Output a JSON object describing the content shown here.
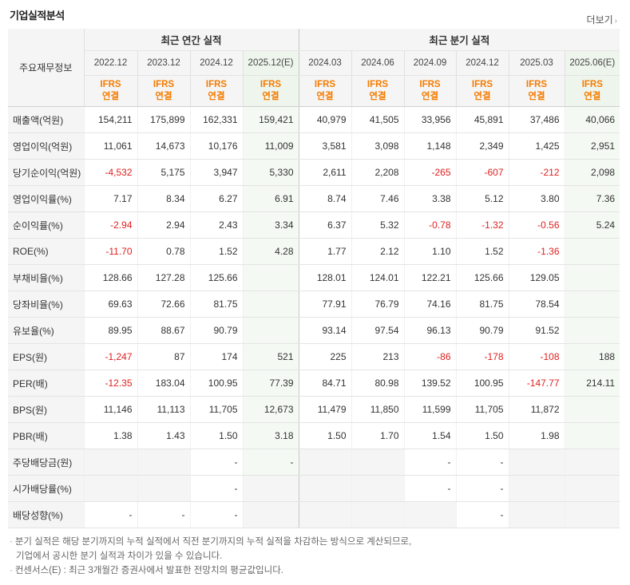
{
  "title": "기업실적분석",
  "more_label": "더보기",
  "more_arrow": "›",
  "header": {
    "label": "주요재무정보",
    "annual_group": "최근 연간 실적",
    "quarter_group": "최근 분기 실적",
    "periods": [
      "2022.12",
      "2023.12",
      "2024.12",
      "2025.12(E)",
      "2024.03",
      "2024.06",
      "2024.09",
      "2024.12",
      "2025.03",
      "2025.06(E)"
    ],
    "ifrs": [
      "IFRS",
      "IFRS",
      "IFRS",
      "IFRS",
      "IFRS",
      "IFRS",
      "IFRS",
      "IFRS",
      "IFRS",
      "IFRS"
    ],
    "consol": [
      "연결",
      "연결",
      "연결",
      "연결",
      "연결",
      "연결",
      "연결",
      "연결",
      "연결",
      "연결"
    ]
  },
  "rows": [
    {
      "label": "매출액(억원)",
      "values": [
        "154,211",
        "175,899",
        "162,331",
        "159,421",
        "40,979",
        "41,505",
        "33,956",
        "45,891",
        "37,486",
        "40,066"
      ]
    },
    {
      "label": "영업이익(억원)",
      "values": [
        "11,061",
        "14,673",
        "10,176",
        "11,009",
        "3,581",
        "3,098",
        "1,148",
        "2,349",
        "1,425",
        "2,951"
      ]
    },
    {
      "label": "당기순이익(억원)",
      "values": [
        "-4,532",
        "5,175",
        "3,947",
        "5,330",
        "2,611",
        "2,208",
        "-265",
        "-607",
        "-212",
        "2,098"
      ]
    },
    {
      "label": "영업이익률(%)",
      "values": [
        "7.17",
        "8.34",
        "6.27",
        "6.91",
        "8.74",
        "7.46",
        "3.38",
        "5.12",
        "3.80",
        "7.36"
      ]
    },
    {
      "label": "순이익률(%)",
      "values": [
        "-2.94",
        "2.94",
        "2.43",
        "3.34",
        "6.37",
        "5.32",
        "-0.78",
        "-1.32",
        "-0.56",
        "5.24"
      ]
    },
    {
      "label": "ROE(%)",
      "values": [
        "-11.70",
        "0.78",
        "1.52",
        "4.28",
        "1.77",
        "2.12",
        "1.10",
        "1.52",
        "-1.36",
        ""
      ]
    },
    {
      "label": "부채비율(%)",
      "values": [
        "128.66",
        "127.28",
        "125.66",
        "",
        "128.01",
        "124.01",
        "122.21",
        "125.66",
        "129.05",
        ""
      ]
    },
    {
      "label": "당좌비율(%)",
      "values": [
        "69.63",
        "72.66",
        "81.75",
        "",
        "77.91",
        "76.79",
        "74.16",
        "81.75",
        "78.54",
        ""
      ]
    },
    {
      "label": "유보율(%)",
      "values": [
        "89.95",
        "88.67",
        "90.79",
        "",
        "93.14",
        "97.54",
        "96.13",
        "90.79",
        "91.52",
        ""
      ]
    },
    {
      "label": "EPS(원)",
      "values": [
        "-1,247",
        "87",
        "174",
        "521",
        "225",
        "213",
        "-86",
        "-178",
        "-108",
        "188"
      ]
    },
    {
      "label": "PER(배)",
      "values": [
        "-12.35",
        "183.04",
        "100.95",
        "77.39",
        "84.71",
        "80.98",
        "139.52",
        "100.95",
        "-147.77",
        "214.11"
      ]
    },
    {
      "label": "BPS(원)",
      "values": [
        "11,146",
        "11,113",
        "11,705",
        "12,673",
        "11,479",
        "11,850",
        "11,599",
        "11,705",
        "11,872",
        ""
      ]
    },
    {
      "label": "PBR(배)",
      "values": [
        "1.38",
        "1.43",
        "1.50",
        "3.18",
        "1.50",
        "1.70",
        "1.54",
        "1.50",
        "1.98",
        ""
      ]
    },
    {
      "label": "주당배당금(원)",
      "values": [
        "",
        "",
        "-",
        "-",
        "",
        "",
        "-",
        "-",
        "",
        ""
      ]
    },
    {
      "label": "시가배당률(%)",
      "values": [
        "",
        "",
        "-",
        "",
        "",
        "",
        "-",
        "-",
        "",
        ""
      ]
    },
    {
      "label": "배당성향(%)",
      "values": [
        "-",
        "-",
        "-",
        "",
        "",
        "",
        "",
        "-",
        "",
        ""
      ]
    }
  ],
  "notes": {
    "bullet": "·",
    "line1": "분기 실적은 해당 분기까지의 누적 실적에서 직전 분기까지의 누적 실적을 차감하는 방식으로 계산되므로,",
    "line2": "기업에서 공시한 분기 실적과 차이가 있을 수 있습니다.",
    "line3": "컨센서스(E) : 최근 3개월간 증권사에서 발표한 전망치의 평균값입니다."
  },
  "colors": {
    "negative": "#e02020",
    "ifrs": "#f57c00",
    "estimate_bg": "#f4f9f3",
    "estimate_mark": "#3a9a3a",
    "header_bg": "#f5f5f5"
  }
}
